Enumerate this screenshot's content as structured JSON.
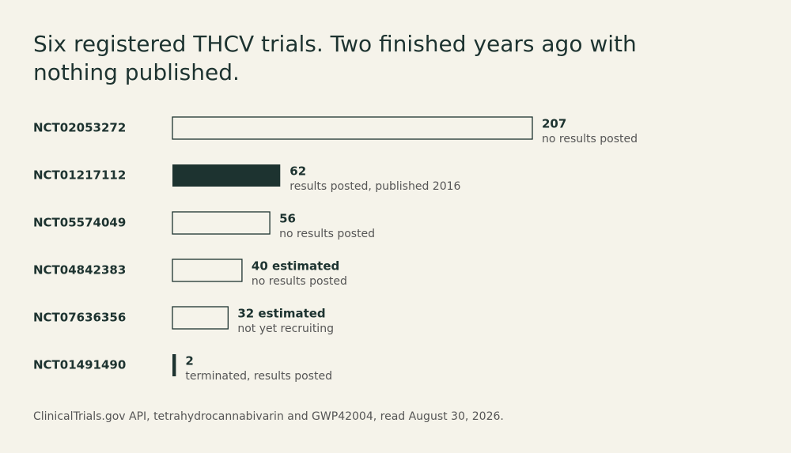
{
  "chart_data": {
    "type": "hbar",
    "title": "Six registered THCV trials. Two finished years ago with nothing published.",
    "categories": [
      "NCT02053272",
      "NCT01217112",
      "NCT05574049",
      "NCT04842383",
      "NCT07636356",
      "NCT01491490"
    ],
    "values": [
      207,
      62,
      56,
      40,
      32,
      2
    ],
    "value_labels": [
      "207",
      "62",
      "56",
      "40 estimated",
      "32 estimated",
      "2"
    ],
    "statuses": [
      "no results posted",
      "results posted, published 2016",
      "no results posted",
      "no results posted",
      "not yet recruiting",
      "terminated, results posted"
    ],
    "filled": [
      false,
      true,
      false,
      false,
      false,
      true
    ],
    "color": "#1d3330",
    "source": "ClinicalTrials.gov API, tetrahydrocannabivarin and GWP42004, read August 30, 2026."
  }
}
